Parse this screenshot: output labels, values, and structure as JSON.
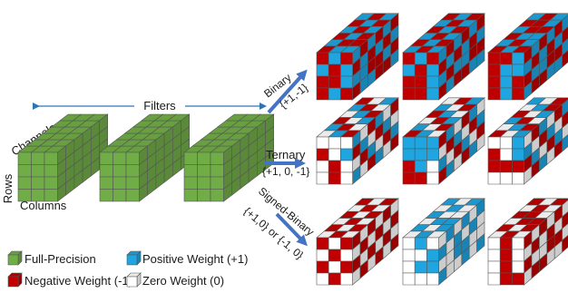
{
  "labels": {
    "filters": "Filters",
    "channels": "Channels",
    "rows": "Rows",
    "columns": "Columns",
    "binary": "Binary",
    "binary_set": "{+1,-1}",
    "ternary": "Ternary",
    "ternary_set": "{+1, 0, -1}",
    "signed_binary": "Signed-Binary",
    "signed_binary_set": "{+1,0} or {-1, 0}"
  },
  "legend": [
    {
      "key": "full",
      "label": "Full-Precision"
    },
    {
      "key": "pos",
      "label": "Positive Weight (+1)"
    },
    {
      "key": "neg",
      "label": "Negative Weight (-1)"
    },
    {
      "key": "zero",
      "label": "Zero Weight (0)"
    }
  ],
  "colors": {
    "full": "#70ad47",
    "pos": "#1fa5e0",
    "neg": "#c00000",
    "zero": "#ffffff",
    "arrow": "#4472c4",
    "filters_line": "#2e75b6"
  },
  "arrows": [
    {
      "key": "binary"
    },
    {
      "key": "ternary"
    },
    {
      "key": "signed_binary"
    }
  ],
  "cube_grid": {
    "rows": 4,
    "cols": 3,
    "depth": 6
  },
  "full_precision_cubes": 3,
  "quantized_rows": [
    {
      "name": "binary",
      "cubes": [
        {
          "front": [
            [
              "neg",
              "pos",
              "neg"
            ],
            [
              "pos",
              "neg",
              "pos"
            ],
            [
              "neg",
              "neg",
              "pos"
            ],
            [
              "neg",
              "pos",
              "neg"
            ]
          ],
          "top": [
            [
              "pos",
              "neg",
              "pos"
            ],
            [
              "neg",
              "pos",
              "neg"
            ],
            [
              "pos",
              "neg",
              "pos"
            ],
            [
              "neg",
              "pos",
              "neg"
            ],
            [
              "pos",
              "neg",
              "neg"
            ],
            [
              "neg",
              "pos",
              "pos"
            ]
          ],
          "side": [
            [
              "pos",
              "neg",
              "pos",
              "neg",
              "pos",
              "neg"
            ],
            [
              "neg",
              "pos",
              "neg",
              "pos",
              "neg",
              "pos"
            ],
            [
              "pos",
              "pos",
              "neg",
              "neg",
              "pos",
              "neg"
            ],
            [
              "neg",
              "pos",
              "pos",
              "neg",
              "neg",
              "pos"
            ]
          ]
        },
        {
          "front": [
            [
              "neg",
              "pos",
              "neg"
            ],
            [
              "pos",
              "neg",
              "pos"
            ],
            [
              "neg",
              "neg",
              "pos"
            ],
            [
              "neg",
              "neg",
              "pos"
            ]
          ],
          "top": [
            [
              "neg",
              "pos",
              "neg"
            ],
            [
              "pos",
              "neg",
              "pos"
            ],
            [
              "neg",
              "pos",
              "neg"
            ],
            [
              "pos",
              "neg",
              "pos"
            ],
            [
              "neg",
              "pos",
              "neg"
            ],
            [
              "pos",
              "neg",
              "pos"
            ]
          ],
          "side": [
            [
              "pos",
              "neg",
              "pos",
              "neg",
              "pos",
              "neg"
            ],
            [
              "neg",
              "pos",
              "neg",
              "pos",
              "neg",
              "pos"
            ],
            [
              "pos",
              "neg",
              "pos",
              "pos",
              "neg",
              "neg"
            ],
            [
              "neg",
              "pos",
              "neg",
              "neg",
              "pos",
              "pos"
            ]
          ]
        },
        {
          "front": [
            [
              "neg",
              "neg",
              "pos"
            ],
            [
              "neg",
              "pos",
              "pos"
            ],
            [
              "neg",
              "pos",
              "neg"
            ],
            [
              "neg",
              "pos",
              "neg"
            ]
          ],
          "top": [
            [
              "pos",
              "neg",
              "pos"
            ],
            [
              "neg",
              "neg",
              "pos"
            ],
            [
              "pos",
              "neg",
              "neg"
            ],
            [
              "neg",
              "pos",
              "pos"
            ],
            [
              "pos",
              "neg",
              "pos"
            ],
            [
              "neg",
              "pos",
              "neg"
            ]
          ],
          "side": [
            [
              "neg",
              "pos",
              "neg",
              "pos",
              "neg",
              "pos"
            ],
            [
              "pos",
              "neg",
              "pos",
              "neg",
              "pos",
              "neg"
            ],
            [
              "neg",
              "pos",
              "pos",
              "neg",
              "neg",
              "pos"
            ],
            [
              "pos",
              "neg",
              "neg",
              "pos",
              "pos",
              "neg"
            ]
          ]
        }
      ]
    },
    {
      "name": "ternary",
      "cubes": [
        {
          "front": [
            [
              "zero",
              "zero",
              "zero"
            ],
            [
              "neg",
              "zero",
              "pos"
            ],
            [
              "zero",
              "neg",
              "zero"
            ],
            [
              "zero",
              "neg",
              "zero"
            ]
          ],
          "top": [
            [
              "neg",
              "zero",
              "pos"
            ],
            [
              "pos",
              "neg",
              "zero"
            ],
            [
              "zero",
              "pos",
              "neg"
            ],
            [
              "neg",
              "zero",
              "pos"
            ],
            [
              "pos",
              "neg",
              "zero"
            ],
            [
              "zero",
              "pos",
              "neg"
            ]
          ],
          "side": [
            [
              "pos",
              "zero",
              "neg",
              "pos",
              "zero",
              "neg"
            ],
            [
              "neg",
              "pos",
              "zero",
              "neg",
              "pos",
              "zero"
            ],
            [
              "zero",
              "neg",
              "pos",
              "zero",
              "neg",
              "pos"
            ],
            [
              "pos",
              "zero",
              "neg",
              "pos",
              "zero",
              "neg"
            ]
          ]
        },
        {
          "front": [
            [
              "pos",
              "pos",
              "pos"
            ],
            [
              "pos",
              "pos",
              "pos"
            ],
            [
              "neg",
              "pos",
              "zero"
            ],
            [
              "neg",
              "neg",
              "zero"
            ]
          ],
          "top": [
            [
              "zero",
              "neg",
              "pos"
            ],
            [
              "pos",
              "zero",
              "neg"
            ],
            [
              "neg",
              "pos",
              "zero"
            ],
            [
              "zero",
              "neg",
              "pos"
            ],
            [
              "pos",
              "zero",
              "neg"
            ],
            [
              "neg",
              "pos",
              "zero"
            ]
          ],
          "side": [
            [
              "neg",
              "pos",
              "zero",
              "neg",
              "pos",
              "zero"
            ],
            [
              "zero",
              "neg",
              "pos",
              "zero",
              "neg",
              "pos"
            ],
            [
              "pos",
              "zero",
              "neg",
              "pos",
              "zero",
              "neg"
            ],
            [
              "neg",
              "pos",
              "zero",
              "neg",
              "pos",
              "zero"
            ]
          ]
        },
        {
          "front": [
            [
              "zero",
              "zero",
              "pos"
            ],
            [
              "neg",
              "zero",
              "pos"
            ],
            [
              "neg",
              "neg",
              "neg"
            ],
            [
              "zero",
              "zero",
              "zero"
            ]
          ],
          "top": [
            [
              "pos",
              "zero",
              "neg"
            ],
            [
              "zero",
              "pos",
              "neg"
            ],
            [
              "neg",
              "zero",
              "pos"
            ],
            [
              "pos",
              "neg",
              "zero"
            ],
            [
              "zero",
              "pos",
              "neg"
            ],
            [
              "neg",
              "zero",
              "pos"
            ]
          ],
          "side": [
            [
              "zero",
              "neg",
              "pos",
              "zero",
              "neg",
              "pos"
            ],
            [
              "pos",
              "zero",
              "neg",
              "pos",
              "zero",
              "neg"
            ],
            [
              "neg",
              "pos",
              "zero",
              "neg",
              "pos",
              "zero"
            ],
            [
              "zero",
              "neg",
              "pos",
              "zero",
              "neg",
              "pos"
            ]
          ]
        }
      ]
    },
    {
      "name": "signed_binary",
      "cubes": [
        {
          "front": [
            [
              "neg",
              "zero",
              "neg"
            ],
            [
              "zero",
              "neg",
              "zero"
            ],
            [
              "neg",
              "zero",
              "neg"
            ],
            [
              "zero",
              "neg",
              "zero"
            ]
          ],
          "top": [
            [
              "neg",
              "zero",
              "neg"
            ],
            [
              "zero",
              "neg",
              "zero"
            ],
            [
              "neg",
              "zero",
              "neg"
            ],
            [
              "zero",
              "neg",
              "zero"
            ],
            [
              "neg",
              "zero",
              "neg"
            ],
            [
              "zero",
              "neg",
              "zero"
            ]
          ],
          "side": [
            [
              "neg",
              "zero",
              "neg",
              "zero",
              "neg",
              "zero"
            ],
            [
              "zero",
              "neg",
              "zero",
              "neg",
              "zero",
              "neg"
            ],
            [
              "neg",
              "zero",
              "neg",
              "zero",
              "neg",
              "zero"
            ],
            [
              "zero",
              "neg",
              "zero",
              "neg",
              "zero",
              "neg"
            ]
          ]
        },
        {
          "front": [
            [
              "zero",
              "pos",
              "zero"
            ],
            [
              "zero",
              "zero",
              "pos"
            ],
            [
              "zero",
              "pos",
              "pos"
            ],
            [
              "zero",
              "zero",
              "zero"
            ]
          ],
          "top": [
            [
              "pos",
              "zero",
              "pos"
            ],
            [
              "zero",
              "pos",
              "zero"
            ],
            [
              "pos",
              "zero",
              "zero"
            ],
            [
              "zero",
              "pos",
              "pos"
            ],
            [
              "pos",
              "zero",
              "pos"
            ],
            [
              "zero",
              "pos",
              "zero"
            ]
          ],
          "side": [
            [
              "zero",
              "pos",
              "zero",
              "pos",
              "zero",
              "pos"
            ],
            [
              "pos",
              "zero",
              "pos",
              "zero",
              "pos",
              "zero"
            ],
            [
              "zero",
              "zero",
              "pos",
              "pos",
              "zero",
              "zero"
            ],
            [
              "pos",
              "zero",
              "zero",
              "pos",
              "zero",
              "pos"
            ]
          ]
        },
        {
          "front": [
            [
              "zero",
              "neg",
              "zero"
            ],
            [
              "zero",
              "neg",
              "zero"
            ],
            [
              "zero",
              "neg",
              "zero"
            ],
            [
              "zero",
              "neg",
              "neg"
            ]
          ],
          "top": [
            [
              "neg",
              "zero",
              "neg"
            ],
            [
              "zero",
              "neg",
              "zero"
            ],
            [
              "neg",
              "neg",
              "zero"
            ],
            [
              "zero",
              "neg",
              "neg"
            ],
            [
              "neg",
              "zero",
              "neg"
            ],
            [
              "zero",
              "neg",
              "zero"
            ]
          ],
          "side": [
            [
              "neg",
              "zero",
              "neg",
              "zero",
              "neg",
              "zero"
            ],
            [
              "zero",
              "neg",
              "zero",
              "neg",
              "zero",
              "neg"
            ],
            [
              "neg",
              "zero",
              "zero",
              "neg",
              "neg",
              "zero"
            ],
            [
              "zero",
              "neg",
              "neg",
              "zero",
              "zero",
              "neg"
            ]
          ]
        }
      ]
    }
  ]
}
